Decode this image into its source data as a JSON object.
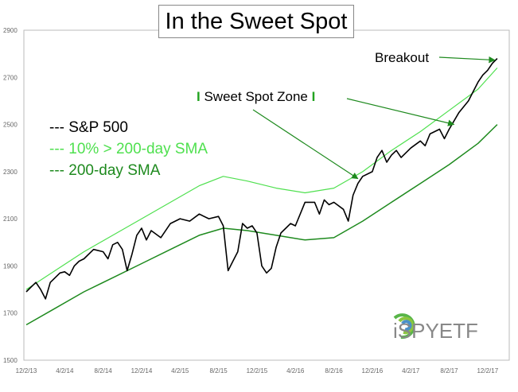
{
  "chart_data": {
    "type": "line",
    "title": "In the Sweet Spot",
    "xlabel": "",
    "ylabel": "",
    "x_ticks": [
      "12/2/13",
      "4/2/14",
      "8/2/14",
      "12/2/14",
      "4/2/15",
      "8/2/15",
      "12/2/15",
      "4/2/16",
      "8/2/16",
      "12/2/16",
      "4/2/17",
      "8/2/17",
      "12/2/17"
    ],
    "y_ticks": [
      "1500",
      "1700",
      "1900",
      "2100",
      "2300",
      "2500",
      "2700",
      "2900"
    ],
    "ylim": [
      1500,
      2900
    ],
    "xlim_months": [
      0,
      50
    ],
    "grid": false,
    "legend": {
      "position": "left",
      "entries": [
        {
          "label": "--- S&P 500",
          "color": "#000000"
        },
        {
          "label": "--- 10% > 200-day SMA",
          "color": "#4fe04f"
        },
        {
          "label": "--- 200-day SMA",
          "color": "#1e8a1e"
        }
      ]
    },
    "series": [
      {
        "name": "S&P 500",
        "color": "#000000",
        "points": [
          [
            0,
            1790
          ],
          [
            0.5,
            1810
          ],
          [
            1,
            1830
          ],
          [
            1.5,
            1800
          ],
          [
            2,
            1760
          ],
          [
            2.5,
            1830
          ],
          [
            3,
            1850
          ],
          [
            3.5,
            1870
          ],
          [
            4,
            1875
          ],
          [
            4.5,
            1860
          ],
          [
            5,
            1900
          ],
          [
            5.5,
            1920
          ],
          [
            6,
            1930
          ],
          [
            7,
            1970
          ],
          [
            8,
            1960
          ],
          [
            8.5,
            1930
          ],
          [
            9,
            1990
          ],
          [
            9.5,
            2000
          ],
          [
            10,
            1970
          ],
          [
            10.5,
            1880
          ],
          [
            11,
            1950
          ],
          [
            11.5,
            2030
          ],
          [
            12,
            2060
          ],
          [
            12.5,
            2010
          ],
          [
            13,
            2050
          ],
          [
            14,
            2020
          ],
          [
            15,
            2080
          ],
          [
            16,
            2100
          ],
          [
            17,
            2090
          ],
          [
            18,
            2120
          ],
          [
            19,
            2100
          ],
          [
            20,
            2110
          ],
          [
            20.5,
            2070
          ],
          [
            21,
            1880
          ],
          [
            21.5,
            1920
          ],
          [
            22,
            1960
          ],
          [
            22.5,
            2080
          ],
          [
            23,
            2060
          ],
          [
            23.5,
            2070
          ],
          [
            24,
            2040
          ],
          [
            24.5,
            1900
          ],
          [
            25,
            1870
          ],
          [
            25.5,
            1890
          ],
          [
            26,
            1980
          ],
          [
            26.5,
            2040
          ],
          [
            27,
            2060
          ],
          [
            27.5,
            2080
          ],
          [
            28,
            2070
          ],
          [
            28.5,
            2120
          ],
          [
            29,
            2170
          ],
          [
            30,
            2170
          ],
          [
            30.5,
            2120
          ],
          [
            31,
            2180
          ],
          [
            31.5,
            2160
          ],
          [
            32,
            2170
          ],
          [
            33,
            2140
          ],
          [
            33.5,
            2090
          ],
          [
            34,
            2200
          ],
          [
            34.5,
            2250
          ],
          [
            35,
            2280
          ],
          [
            36,
            2300
          ],
          [
            36.5,
            2360
          ],
          [
            37,
            2390
          ],
          [
            37.5,
            2340
          ],
          [
            38,
            2370
          ],
          [
            38.5,
            2390
          ],
          [
            39,
            2360
          ],
          [
            40,
            2400
          ],
          [
            41,
            2430
          ],
          [
            41.5,
            2410
          ],
          [
            42,
            2460
          ],
          [
            43,
            2480
          ],
          [
            43.5,
            2440
          ],
          [
            44,
            2480
          ],
          [
            45,
            2550
          ],
          [
            46,
            2600
          ],
          [
            46.5,
            2640
          ],
          [
            47,
            2680
          ],
          [
            47.5,
            2710
          ],
          [
            48,
            2730
          ],
          [
            48.5,
            2760
          ],
          [
            49,
            2780
          ]
        ]
      },
      {
        "name": "10% > 200-day SMA",
        "color": "#4fe04f",
        "points": [
          [
            0,
            1800
          ],
          [
            3,
            1880
          ],
          [
            6,
            1960
          ],
          [
            9,
            2030
          ],
          [
            12,
            2100
          ],
          [
            15,
            2170
          ],
          [
            18,
            2240
          ],
          [
            20.5,
            2280
          ],
          [
            23,
            2260
          ],
          [
            26,
            2230
          ],
          [
            29,
            2210
          ],
          [
            32,
            2230
          ],
          [
            35,
            2300
          ],
          [
            38,
            2390
          ],
          [
            41,
            2470
          ],
          [
            44,
            2560
          ],
          [
            47,
            2650
          ],
          [
            49,
            2740
          ]
        ]
      },
      {
        "name": "200-day SMA",
        "color": "#1e8a1e",
        "points": [
          [
            0,
            1650
          ],
          [
            3,
            1720
          ],
          [
            6,
            1790
          ],
          [
            9,
            1850
          ],
          [
            12,
            1910
          ],
          [
            15,
            1970
          ],
          [
            18,
            2030
          ],
          [
            20.5,
            2060
          ],
          [
            23,
            2050
          ],
          [
            26,
            2030
          ],
          [
            29,
            2010
          ],
          [
            32,
            2020
          ],
          [
            35,
            2090
          ],
          [
            38,
            2170
          ],
          [
            41,
            2250
          ],
          [
            44,
            2330
          ],
          [
            47,
            2420
          ],
          [
            49,
            2500
          ]
        ]
      }
    ],
    "annotations": [
      {
        "text": "Breakout",
        "target": [
          49,
          2780
        ]
      },
      {
        "text": "Sweet Spot Zone",
        "targets": [
          [
            34.5,
            2250
          ],
          [
            44.5,
            2480
          ]
        ]
      }
    ]
  },
  "logo": {
    "text": "iSPYETF"
  },
  "colors": {
    "price": "#000000",
    "upper": "#4fe04f",
    "sma": "#1e8a1e",
    "axis": "#666666"
  }
}
